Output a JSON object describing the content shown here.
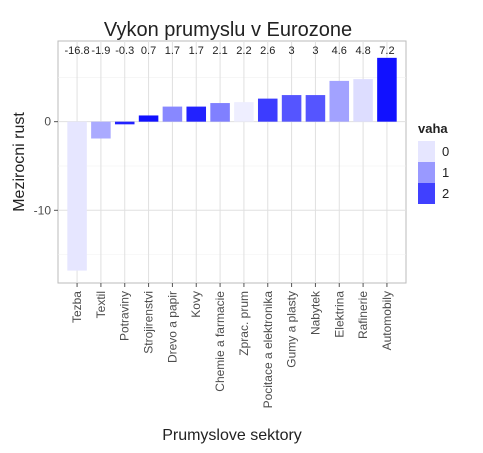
{
  "chart_data": {
    "type": "bar",
    "title": "Vykon prumyslu v Eurozone",
    "xlabel": "Prumyslove sektory",
    "ylabel": "Mezirocni rust",
    "ylim": [
      -18.2,
      9.1
    ],
    "yticks": [
      0,
      -10
    ],
    "grid": true,
    "legend": {
      "title": "vaha",
      "position": "right",
      "labels": [
        "0",
        "1",
        "2"
      ],
      "colors": [
        "#e6e6ff",
        "#9999ff",
        "#4040ff"
      ]
    },
    "categories": [
      "Tezba",
      "Textil",
      "Potraviny",
      "Strojirenstvi",
      "Drevo a papir",
      "Kovy",
      "Chemie a farmacie",
      "Zprac. prum",
      "Pocitace a elektronika",
      "Gumy a plasty",
      "Nabytek",
      "Elektrina",
      "Rafinerie",
      "Automobily"
    ],
    "values": [
      -16.8,
      -1.9,
      -0.3,
      0.7,
      1.7,
      1.7,
      2.1,
      2.2,
      2.6,
      3,
      3,
      4.6,
      4.8,
      7.2
    ],
    "value_labels": [
      "-16.8",
      "-1.9",
      "-0.3",
      "0.7",
      "1.7",
      "1.7",
      "2.1",
      "2.2",
      "2.6",
      "3",
      "3",
      "4.6",
      "4.8",
      "7.2"
    ],
    "weights": [
      0.3,
      1.0,
      2.6,
      2.8,
      1.4,
      2.6,
      1.5,
      0.2,
      2.3,
      2.0,
      2.0,
      1.1,
      0.4,
      2.8
    ],
    "color_scale": {
      "min": "#ffffff",
      "max": "#0000ff",
      "domain": [
        0,
        3.0
      ]
    }
  }
}
